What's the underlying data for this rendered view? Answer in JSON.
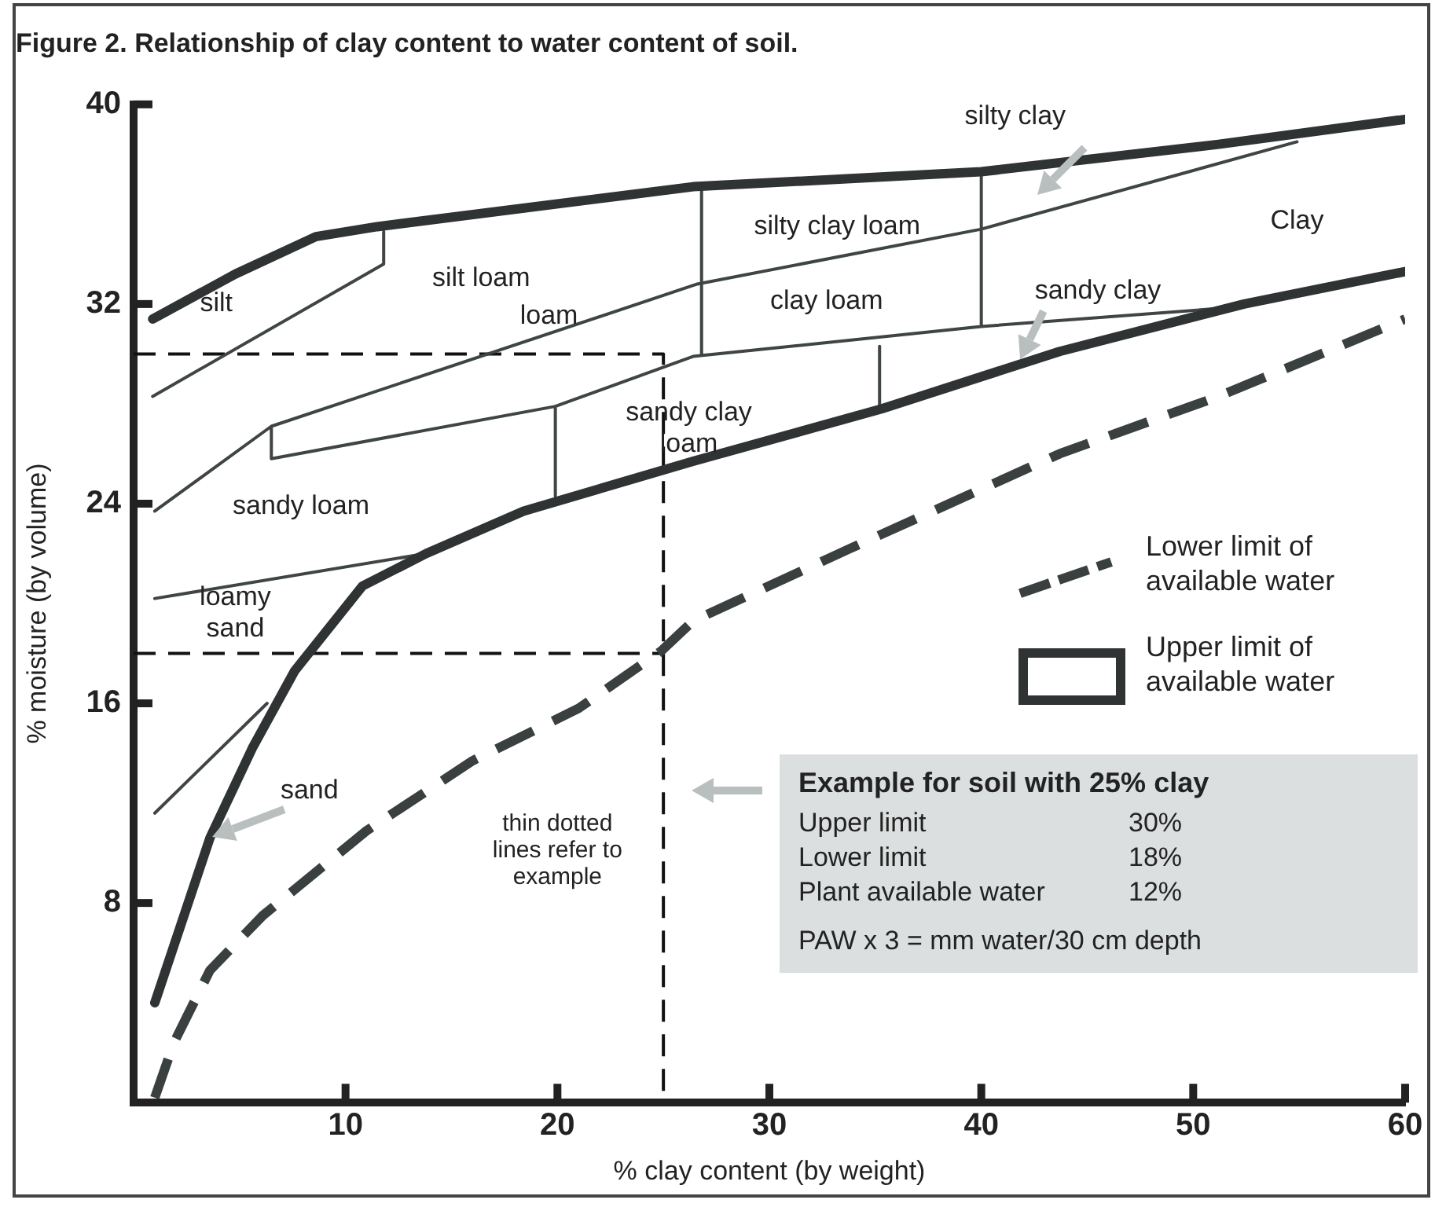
{
  "chart_data": {
    "type": "line",
    "title": "Figure 2. Relationship of clay content to water content of soil.",
    "xlabel": "% clay content (by weight)",
    "ylabel": "% moisture (by volume)",
    "xlim": [
      0,
      60
    ],
    "xticks": [
      10,
      20,
      30,
      40,
      50,
      60
    ],
    "ylim": [
      0,
      40
    ],
    "yticks": [
      8,
      16,
      24,
      32,
      40
    ],
    "grid": false,
    "legend": "right",
    "marker": "none",
    "series": [
      {
        "name": "Lower limit of available water",
        "color": "#3a3f3f",
        "line_style": "dashed",
        "x": [
          1.0,
          1.9,
          3.6,
          6.1,
          11.0,
          16.0,
          21.0,
          24.9,
          26.4,
          33.8,
          43.7,
          51.2,
          60
        ],
        "values": [
          0.2,
          2.4,
          5.3,
          7.5,
          10.9,
          13.7,
          15.8,
          18.1,
          19.3,
          22.2,
          26.0,
          28.3,
          31.4
        ]
      },
      {
        "name": "Upper limit of available water",
        "color": "#2f3333",
        "line_style": "solid",
        "x": [
          0.9,
          4.8,
          8.6,
          11.5,
          26.4,
          40.0,
          51.2,
          60,
          null,
          1.0,
          3.6,
          5.6,
          7.6,
          10.8,
          13.8,
          18.4,
          26.4,
          35.3,
          43.7,
          52.4,
          60
        ],
        "values": [
          31.4,
          33.2,
          34.7,
          35.1,
          36.7,
          37.3,
          38.4,
          39.4,
          null,
          4.0,
          10.6,
          14.2,
          17.3,
          20.7,
          22.0,
          23.7,
          25.7,
          27.8,
          30.1,
          32.0,
          33.3
        ]
      },
      {
        "color": "#3f4444",
        "line_style": "solid",
        "x": [
          1.0,
          6.5,
          26.6,
          40.0,
          54.9,
          null,
          6.5,
          6.5,
          19.9,
          26.4,
          40.0,
          52.4,
          null,
          0.9,
          11.8,
          11.8,
          null,
          19.9,
          19.9,
          null,
          26.8,
          26.8,
          null,
          35.2,
          35.2,
          null,
          40,
          40,
          null,
          1.0,
          13.8,
          null,
          1.0,
          6.3
        ],
        "values": [
          23.7,
          27.1,
          32.8,
          35.0,
          38.5,
          null,
          27.1,
          25.8,
          27.9,
          29.9,
          31.1,
          31.9,
          null,
          28.3,
          33.6,
          34.9,
          null,
          27.9,
          24.3,
          null,
          36.6,
          30.0,
          null,
          30.3,
          27.8,
          null,
          37.1,
          31.1,
          null,
          20.2,
          22.0,
          null,
          11.6,
          16.0
        ]
      },
      {
        "color": "#111111",
        "line_style": "dashed",
        "x": [
          0,
          25,
          25,
          null,
          0,
          25
        ],
        "values": [
          30,
          30,
          0,
          null,
          18,
          18
        ]
      }
    ],
    "annotations": [
      "silt",
      "silt loam",
      "loam",
      "sandy clay\nloam",
      "sandy loam",
      "loamy\nsand",
      {
        "text": "sand",
        "x": 3.6,
        "y": 10.6
      },
      "silty clay loam",
      "clay loam",
      "silty clay",
      "Clay",
      {
        "text": "sandy clay",
        "x": 41.8,
        "y": 29.7
      },
      "thin dotted\nlines refer to\nexample",
      "Example for soil with 25% clay",
      "Upper limit 30%",
      "Lower limit 18%",
      "Plant available water 12%",
      "PAW x 3 = mm water/30 cm depth"
    ]
  }
}
